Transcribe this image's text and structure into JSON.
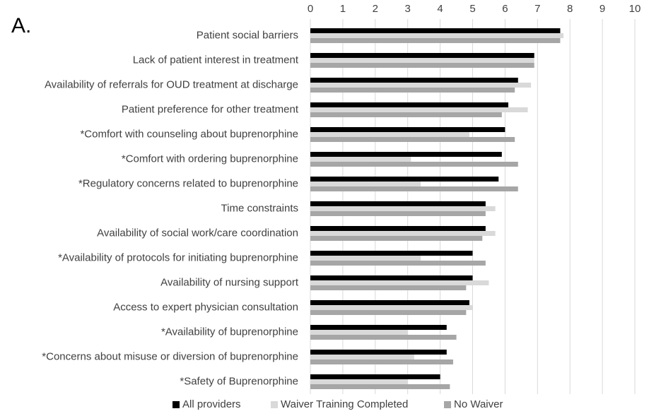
{
  "panel": {
    "label": "A."
  },
  "colors": {
    "All providers": "#000000",
    "Waiver Training Completed": "#d9d9d9",
    "No Waiver": "#a6a6a6",
    "gridline": "#d9d9d9",
    "text": "#404040"
  },
  "chart_data": {
    "type": "bar",
    "orientation": "horizontal",
    "title": "",
    "xlabel": "",
    "ylabel": "",
    "xlim": [
      0,
      10
    ],
    "xticks": [
      0,
      1,
      2,
      3,
      4,
      5,
      6,
      7,
      8,
      9,
      10
    ],
    "x_axis_position": "top",
    "grid": "vertical",
    "legend_position": "bottom",
    "categories": [
      "Patient social barriers",
      "Lack of patient interest in treatment",
      "Availability of referrals for OUD treatment at discharge",
      "Patient preference for other treatment",
      "*Comfort with counseling about buprenorphine",
      "*Comfort with ordering buprenorphine",
      "*Regulatory concerns related to buprenorphine",
      "Time constraints",
      "Availability of social work/care coordination",
      "*Availability of protocols for initiating buprenorphine",
      "Availability of nursing support",
      "Access to expert physician consultation",
      "*Availability of buprenorphine",
      "*Concerns about misuse or diversion of buprenorphine",
      "*Safety of Buprenorphine"
    ],
    "series": [
      {
        "name": "All providers",
        "values": [
          7.7,
          6.9,
          6.4,
          6.1,
          6.0,
          5.9,
          5.8,
          5.4,
          5.4,
          5.0,
          5.0,
          4.9,
          4.2,
          4.2,
          4.0
        ]
      },
      {
        "name": "Waiver Training Completed",
        "values": [
          7.8,
          6.9,
          6.8,
          6.7,
          4.9,
          3.1,
          3.4,
          5.7,
          5.7,
          3.4,
          5.5,
          5.0,
          3.0,
          3.2,
          3.0
        ]
      },
      {
        "name": "No Waiver",
        "values": [
          7.7,
          6.9,
          6.3,
          5.9,
          6.3,
          6.4,
          6.4,
          5.4,
          5.3,
          5.4,
          4.8,
          4.8,
          4.5,
          4.4,
          4.3
        ]
      }
    ]
  }
}
